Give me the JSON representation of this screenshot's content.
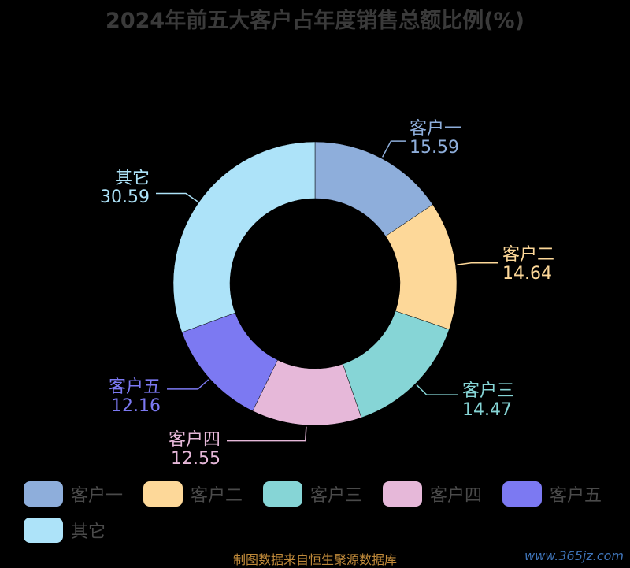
{
  "chart_data": {
    "type": "pie",
    "title": "2024年前五大客户占年度销售总额比例(%)",
    "slices": [
      {
        "name": "客户一",
        "value": 15.59,
        "color": "#8eaedb"
      },
      {
        "name": "客户二",
        "value": 14.64,
        "color": "#fdd899"
      },
      {
        "name": "客户三",
        "value": 14.47,
        "color": "#86d5d6"
      },
      {
        "name": "客户四",
        "value": 12.55,
        "color": "#e6b8d9"
      },
      {
        "name": "客户五",
        "value": 12.16,
        "color": "#7c79f2"
      },
      {
        "name": "其它",
        "value": 30.59,
        "color": "#ade3f9"
      }
    ],
    "legend_position": "bottom"
  },
  "footer": {
    "source": "制图数据来自恒生聚源数据库",
    "watermark": "www.365jz.com"
  }
}
